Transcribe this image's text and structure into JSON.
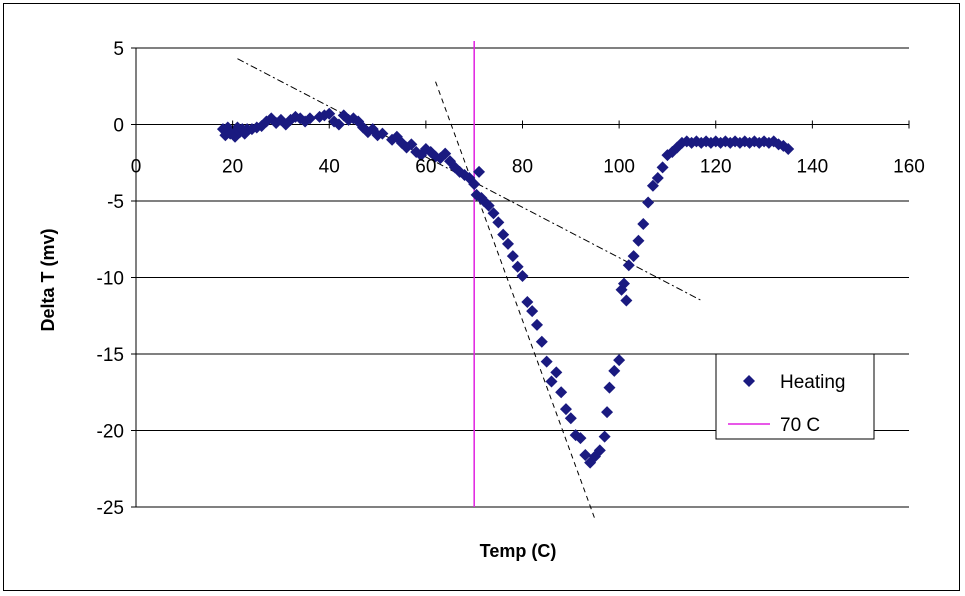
{
  "chart_data": {
    "type": "scatter",
    "title": "",
    "xlabel": "Temp (C)",
    "ylabel": "Delta T (mv)",
    "xlim": [
      0,
      160
    ],
    "ylim": [
      -25,
      5
    ],
    "x_ticks": [
      0,
      20,
      40,
      60,
      80,
      100,
      120,
      140,
      160
    ],
    "y_ticks": [
      5,
      0,
      -5,
      -10,
      -15,
      -20,
      -25
    ],
    "grid": "horizontal",
    "legend_position": "right",
    "colors": {
      "heating": "#1a1a80",
      "marker70": "#e020e0",
      "axis": "#000000"
    },
    "series": [
      {
        "name": "Heating",
        "marker": "diamond",
        "points": [
          [
            18,
            -0.3
          ],
          [
            18.5,
            -0.7
          ],
          [
            19,
            -0.2
          ],
          [
            19.5,
            -0.6
          ],
          [
            20,
            -0.5
          ],
          [
            20.5,
            -0.8
          ],
          [
            21,
            -0.2
          ],
          [
            21.5,
            -0.5
          ],
          [
            22,
            -0.3
          ],
          [
            22.5,
            -0.6
          ],
          [
            23,
            -0.3
          ],
          [
            24,
            -0.3
          ],
          [
            25,
            -0.2
          ],
          [
            26,
            -0.1
          ],
          [
            27,
            0.2
          ],
          [
            28,
            0.4
          ],
          [
            29,
            0.1
          ],
          [
            30,
            0.3
          ],
          [
            31,
            0.0
          ],
          [
            32,
            0.3
          ],
          [
            33,
            0.5
          ],
          [
            34,
            0.4
          ],
          [
            35,
            0.2
          ],
          [
            36,
            0.4
          ],
          [
            38,
            0.5
          ],
          [
            39,
            0.6
          ],
          [
            40,
            0.7
          ],
          [
            41,
            0.2
          ],
          [
            42,
            0.0
          ],
          [
            43,
            0.6
          ],
          [
            44,
            0.3
          ],
          [
            45,
            0.4
          ],
          [
            46,
            0.2
          ],
          [
            47,
            -0.2
          ],
          [
            48,
            -0.5
          ],
          [
            49,
            -0.3
          ],
          [
            50,
            -0.7
          ],
          [
            51,
            -0.6
          ],
          [
            53,
            -1.0
          ],
          [
            54,
            -0.8
          ],
          [
            55,
            -1.2
          ],
          [
            56,
            -1.5
          ],
          [
            57,
            -1.3
          ],
          [
            58,
            -1.8
          ],
          [
            59,
            -2.0
          ],
          [
            60,
            -1.6
          ],
          [
            61,
            -1.8
          ],
          [
            62,
            -2.1
          ],
          [
            63,
            -2.2
          ],
          [
            64,
            -1.9
          ],
          [
            65,
            -2.4
          ],
          [
            66,
            -2.8
          ],
          [
            67,
            -3.1
          ],
          [
            68,
            -3.3
          ],
          [
            69,
            -3.5
          ],
          [
            70,
            -3.9
          ],
          [
            70.5,
            -4.6
          ],
          [
            71,
            -3.1
          ],
          [
            71.5,
            -4.8
          ],
          [
            72,
            -5.0
          ],
          [
            73,
            -5.3
          ],
          [
            74,
            -5.8
          ],
          [
            75,
            -6.4
          ],
          [
            76,
            -7.2
          ],
          [
            77,
            -7.8
          ],
          [
            78,
            -8.6
          ],
          [
            79,
            -9.3
          ],
          [
            80,
            -9.9
          ],
          [
            81,
            -11.6
          ],
          [
            82,
            -12.2
          ],
          [
            83,
            -13.1
          ],
          [
            84,
            -14.2
          ],
          [
            85,
            -15.5
          ],
          [
            86,
            -16.8
          ],
          [
            87,
            -16.2
          ],
          [
            88,
            -17.5
          ],
          [
            89,
            -18.6
          ],
          [
            90,
            -19.2
          ],
          [
            91,
            -20.3
          ],
          [
            92,
            -20.5
          ],
          [
            93,
            -21.6
          ],
          [
            94,
            -22.1
          ],
          [
            95,
            -21.7
          ],
          [
            96,
            -21.3
          ],
          [
            97,
            -20.4
          ],
          [
            97.5,
            -18.8
          ],
          [
            98,
            -17.2
          ],
          [
            99,
            -16.1
          ],
          [
            100,
            -15.4
          ],
          [
            100.5,
            -10.8
          ],
          [
            101,
            -10.4
          ],
          [
            101.5,
            -11.5
          ],
          [
            102,
            -9.2
          ],
          [
            103,
            -8.6
          ],
          [
            104,
            -7.6
          ],
          [
            105,
            -6.5
          ],
          [
            106,
            -5.1
          ],
          [
            107,
            -4.0
          ],
          [
            108,
            -3.5
          ],
          [
            109,
            -2.8
          ],
          [
            110,
            -2.0
          ],
          [
            111,
            -1.8
          ],
          [
            112,
            -1.5
          ],
          [
            113,
            -1.2
          ],
          [
            114,
            -1.1
          ],
          [
            115,
            -1.2
          ],
          [
            116,
            -1.1
          ],
          [
            117,
            -1.2
          ],
          [
            118,
            -1.1
          ],
          [
            119,
            -1.2
          ],
          [
            120,
            -1.1
          ],
          [
            121,
            -1.2
          ],
          [
            122,
            -1.1
          ],
          [
            123,
            -1.2
          ],
          [
            124,
            -1.1
          ],
          [
            125,
            -1.2
          ],
          [
            126,
            -1.1
          ],
          [
            127,
            -1.2
          ],
          [
            128,
            -1.1
          ],
          [
            129,
            -1.2
          ],
          [
            130,
            -1.1
          ],
          [
            131,
            -1.2
          ],
          [
            132,
            -1.1
          ],
          [
            133,
            -1.3
          ],
          [
            134,
            -1.4
          ],
          [
            135,
            -1.6
          ]
        ]
      },
      {
        "name": "70 C",
        "type": "vertical-line",
        "x": 70
      }
    ],
    "annotations": [
      {
        "style": "dash-dot",
        "from": [
          21,
          4.3
        ],
        "to": [
          117,
          -11.5
        ]
      },
      {
        "style": "dashed",
        "from": [
          62,
          2.8
        ],
        "to": [
          95,
          -25.8
        ]
      }
    ]
  }
}
